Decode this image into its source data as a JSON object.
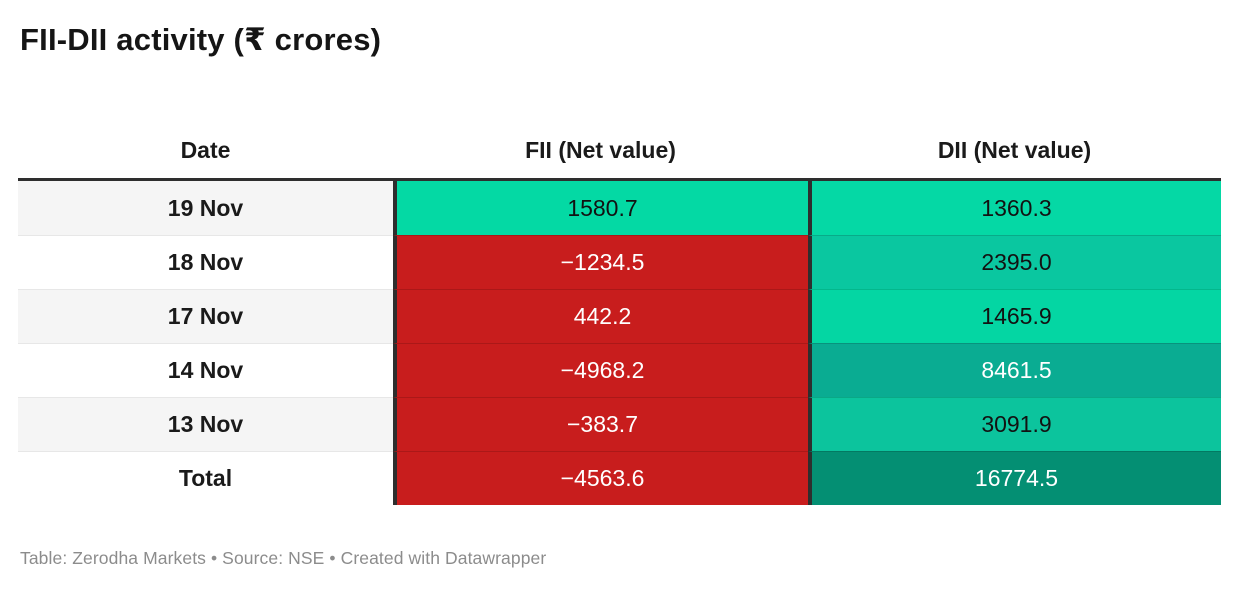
{
  "title": "FII-DII activity (₹ crores)",
  "footer": "Table: Zerodha Markets • Source: NSE • Created with Datawrapper",
  "colors": {
    "negative_red": "#c81d1d",
    "positive_green": "#04d9a4",
    "dark_border": "#2e2e2e",
    "zebra_gray": "#f5f5f5",
    "footer_gray": "#8c8c8c",
    "text_dark": "#121212",
    "text_light": "#ffffff"
  },
  "table": {
    "header": {
      "date": "Date",
      "fii": "FII (Net value)",
      "dii": "DII (Net value)"
    },
    "rows": [
      {
        "date": "19 Nov",
        "fii": "1580.7",
        "fii_bg": "#04d9a4",
        "fii_fg": "#121212",
        "dii": "1360.3",
        "dii_bg": "#05d8a5",
        "dii_fg": "#121212"
      },
      {
        "date": "18 Nov",
        "fii": "−1234.5",
        "fii_bg": "#c81d1d",
        "fii_fg": "#ffffff",
        "dii": "2395.0",
        "dii_bg": "#0ac7a0",
        "dii_fg": "#121212"
      },
      {
        "date": "17 Nov",
        "fii": "442.2",
        "fii_bg": "#c81d1d",
        "fii_fg": "#ffffff",
        "dii": "1465.9",
        "dii_bg": "#04d6a3",
        "dii_fg": "#121212"
      },
      {
        "date": "14 Nov",
        "fii": "−4968.2",
        "fii_bg": "#c81d1d",
        "fii_fg": "#ffffff",
        "dii": "8461.5",
        "dii_bg": "#0aac92",
        "dii_fg": "#ffffff"
      },
      {
        "date": "13 Nov",
        "fii": "−383.7",
        "fii_bg": "#c81d1d",
        "fii_fg": "#ffffff",
        "dii": "3091.9",
        "dii_bg": "#0cc49d",
        "dii_fg": "#121212"
      },
      {
        "date": "Total",
        "fii": "−4563.6",
        "fii_bg": "#c81d1d",
        "fii_fg": "#ffffff",
        "dii": "16774.5",
        "dii_bg": "#048f73",
        "dii_fg": "#ffffff"
      }
    ]
  },
  "chart_data": {
    "type": "table",
    "title": "FII-DII activity (₹ crores)",
    "columns": [
      "Date",
      "FII (Net value)",
      "DII (Net value)"
    ],
    "rows": [
      [
        "19 Nov",
        1580.7,
        1360.3
      ],
      [
        "18 Nov",
        -1234.5,
        2395.0
      ],
      [
        "17 Nov",
        442.2,
        1465.9
      ],
      [
        "14 Nov",
        -4968.2,
        8461.5
      ],
      [
        "13 Nov",
        -383.7,
        3091.9
      ],
      [
        "Total",
        -4563.6,
        16774.5
      ]
    ],
    "layout_hints": "FII column cells colored red except 19 Nov which is bright green; DII column cells shaded teal heatmap darker with larger magnitude; date column zebra-striped; thick dark vertical borders between columns and under header",
    "footer": "Table: Zerodha Markets • Source: NSE • Created with Datawrapper"
  }
}
